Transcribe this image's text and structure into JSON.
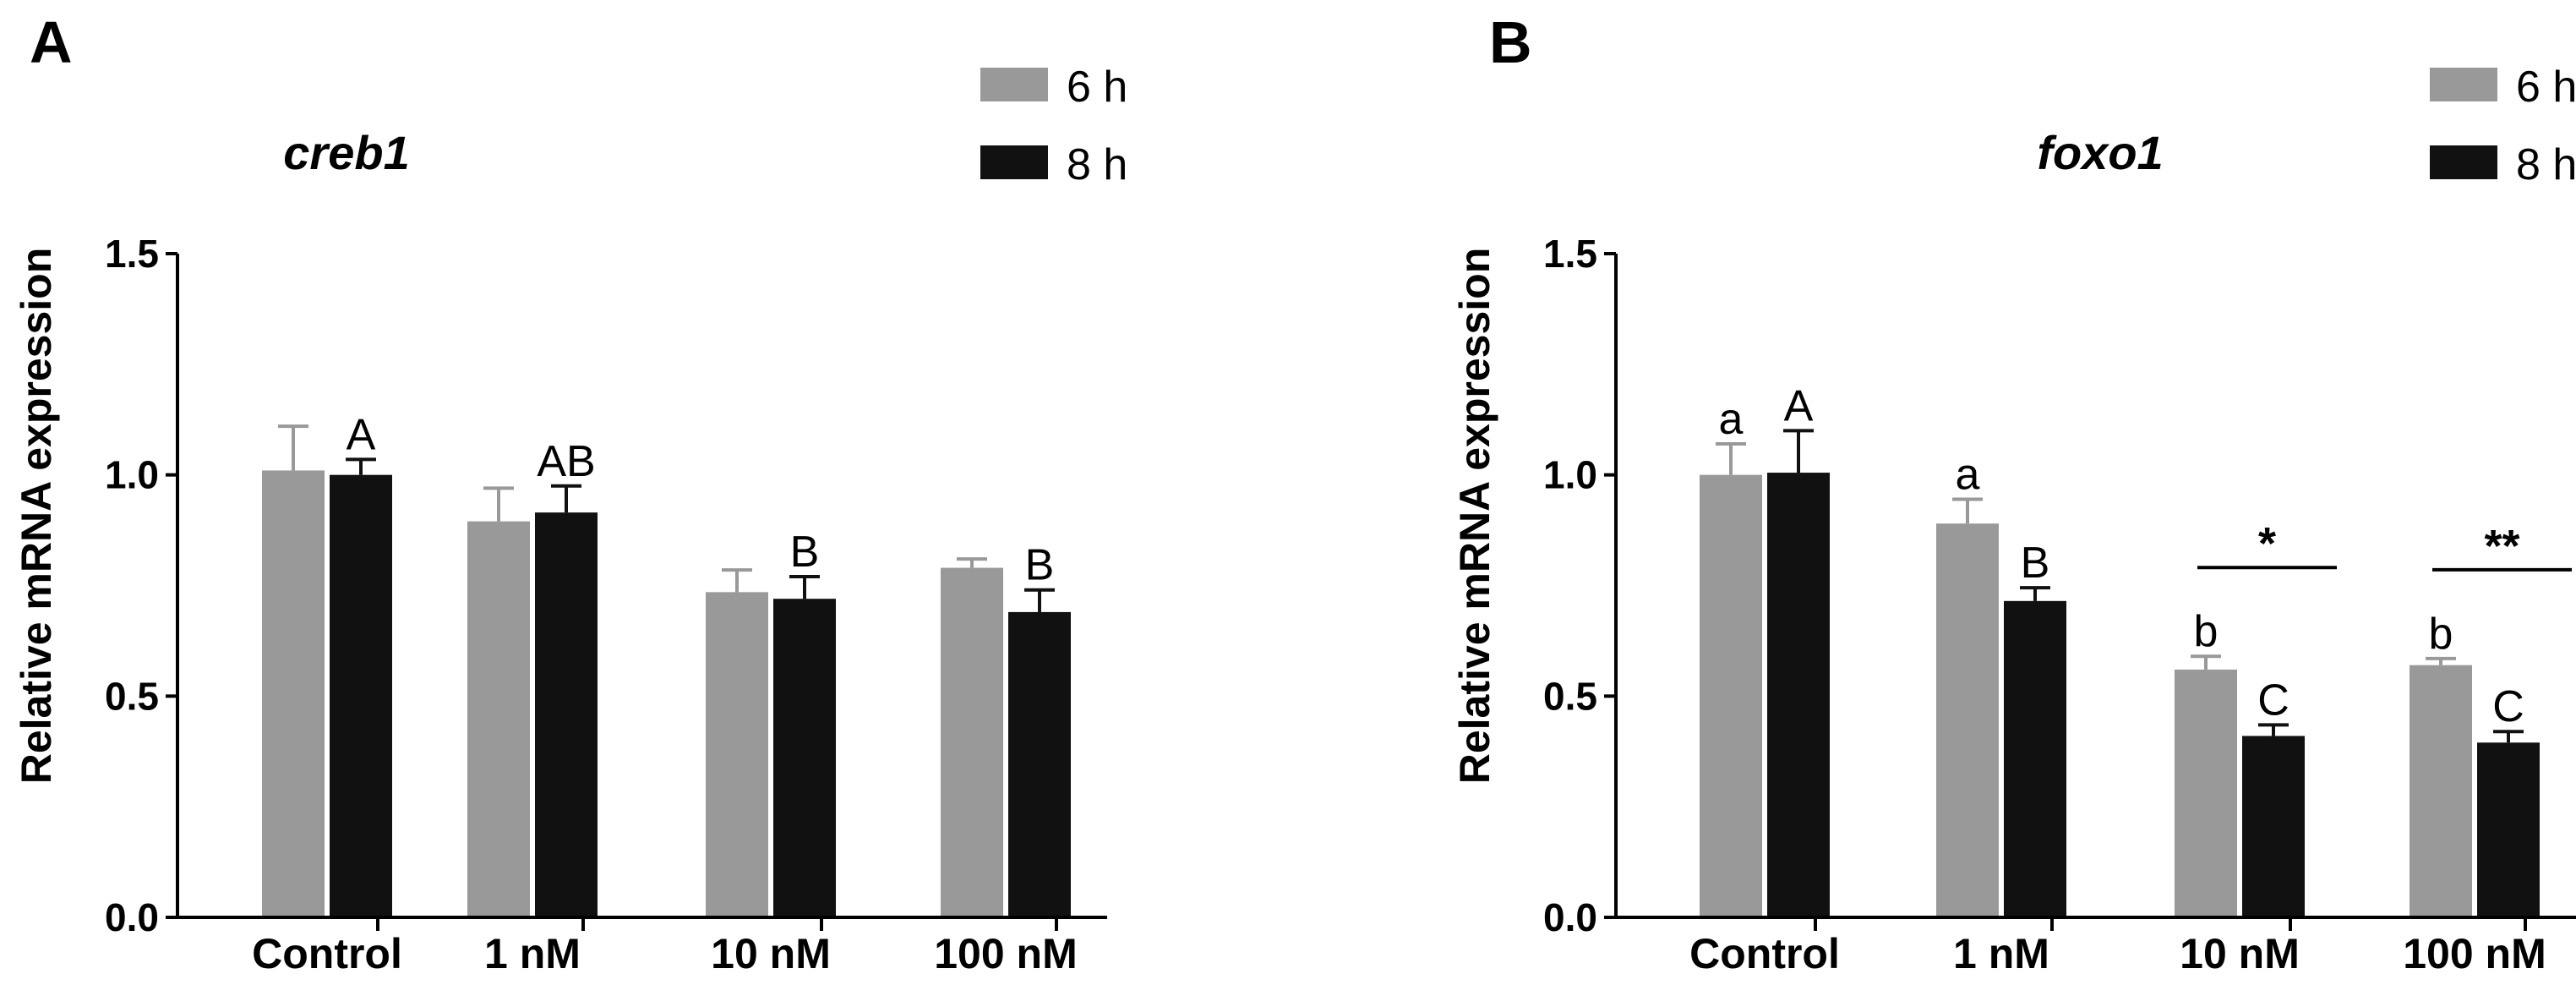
{
  "colors": {
    "series_6h": "#999999",
    "series_8h": "#111111",
    "axis": "#000000",
    "background": "#ffffff"
  },
  "chart_data": [
    {
      "panel": "A",
      "type": "bar",
      "title": "creb1",
      "ylabel": "Relative mRNA expression",
      "xlabel": "",
      "ylim": [
        0,
        1.5
      ],
      "yticks": [
        "0.0",
        "0.5",
        "1.0",
        "1.5"
      ],
      "categories": [
        "Control",
        "1 nM",
        "10  nM",
        "100 nM"
      ],
      "legend_position": "top-right",
      "series": [
        {
          "name": "6 h",
          "values": [
            1.01,
            0.895,
            0.735,
            0.79
          ],
          "errors": [
            0.1,
            0.075,
            0.05,
            0.02
          ],
          "letters": [
            "",
            "",
            "",
            ""
          ]
        },
        {
          "name": "8 h",
          "values": [
            1.0,
            0.915,
            0.72,
            0.69
          ],
          "errors": [
            0.035,
            0.06,
            0.05,
            0.05
          ],
          "letters": [
            "A",
            "AB",
            "B",
            "B"
          ]
        }
      ],
      "significance": []
    },
    {
      "panel": "B",
      "type": "bar",
      "title": "foxo1",
      "ylabel": "Relative mRNA expression",
      "xlabel": "",
      "ylim": [
        0,
        1.5
      ],
      "yticks": [
        "0.0",
        "0.5",
        "1.0",
        "1.5"
      ],
      "categories": [
        "Control",
        "1 nM",
        "10  nM",
        "100 nM"
      ],
      "legend_position": "top-right",
      "series": [
        {
          "name": "6 h",
          "values": [
            1.0,
            0.89,
            0.56,
            0.57
          ],
          "errors": [
            0.07,
            0.055,
            0.03,
            0.015
          ],
          "letters": [
            "a",
            "a",
            "b",
            "b"
          ]
        },
        {
          "name": "8 h",
          "values": [
            1.005,
            0.715,
            0.41,
            0.395
          ],
          "errors": [
            0.095,
            0.03,
            0.025,
            0.025
          ],
          "letters": [
            "A",
            "B",
            "C",
            "C"
          ]
        }
      ],
      "significance": [
        {
          "category_index": 2,
          "label": "*"
        },
        {
          "category_index": 3,
          "label": "**"
        }
      ]
    }
  ]
}
